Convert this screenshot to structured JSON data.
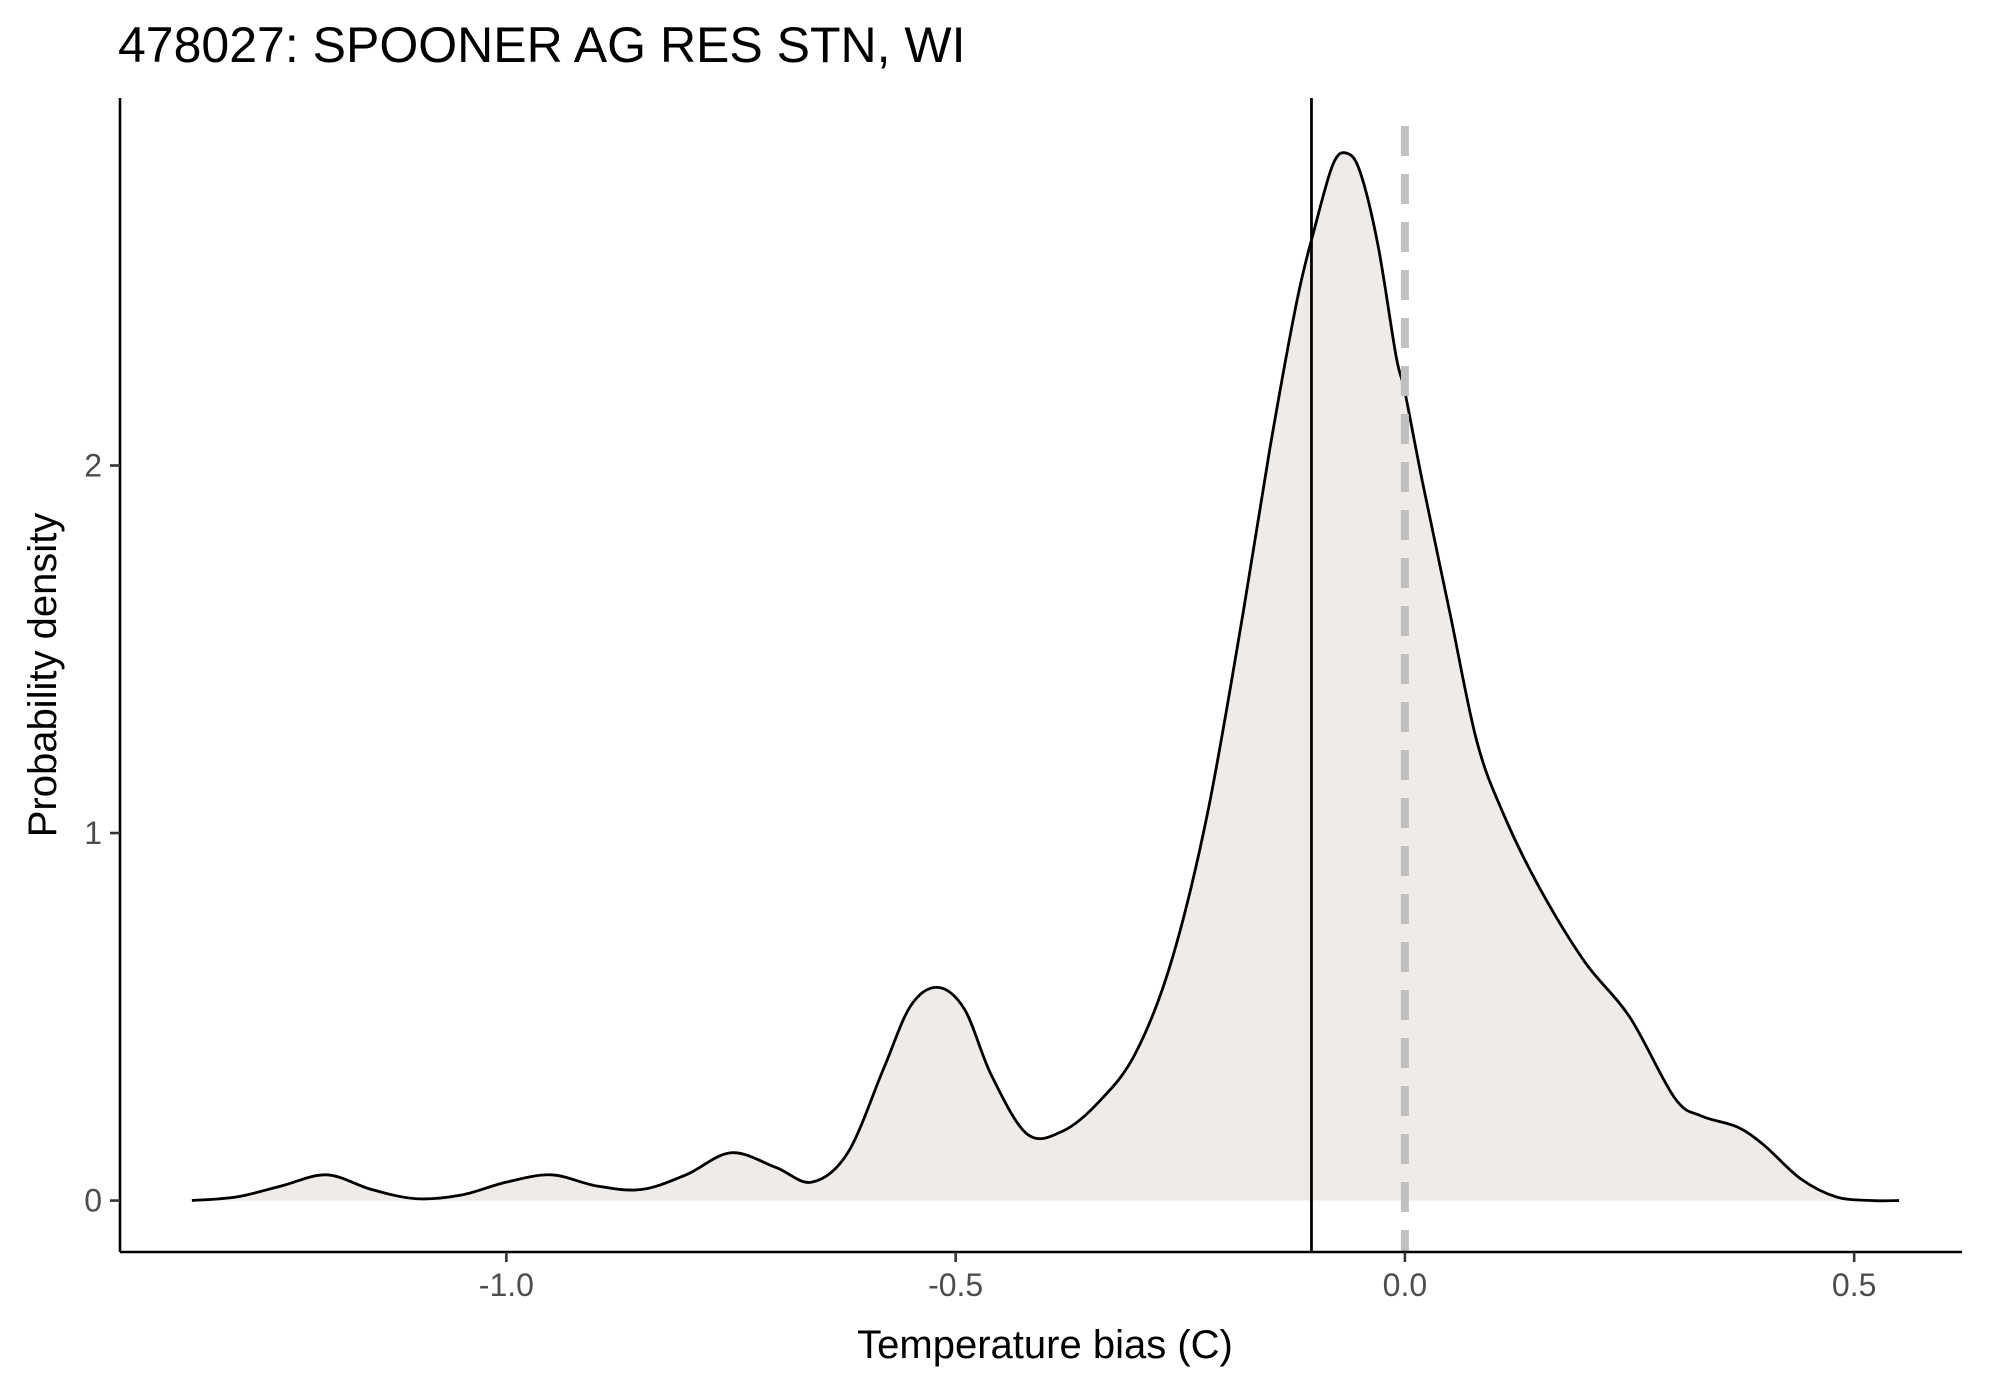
{
  "chart_data": {
    "type": "area",
    "title": "478027: SPOONER AG RES STN, WI",
    "xlabel": "Temperature bias (C)",
    "ylabel": "Probability density",
    "xlim": [
      -1.43,
      0.62
    ],
    "ylim": [
      -0.14,
      3.0
    ],
    "x_ticks": [
      -1.0,
      -0.5,
      0.0,
      0.5
    ],
    "x_tick_labels": [
      "-1.0",
      "-0.5",
      "0.0",
      "0.5"
    ],
    "y_ticks": [
      0,
      1,
      2
    ],
    "y_tick_labels": [
      "0",
      "1",
      "2"
    ],
    "grid": false,
    "legend": "none",
    "fill_color": "#efebe8",
    "line_color": "#000000",
    "reference_lines": [
      {
        "x": -0.104,
        "style": "solid",
        "color": "#000000"
      },
      {
        "x": 0.0,
        "style": "dashed",
        "color": "#c0c0c0"
      }
    ],
    "density": {
      "x": [
        -1.35,
        -1.3,
        -1.25,
        -1.2,
        -1.15,
        -1.1,
        -1.05,
        -1.0,
        -0.95,
        -0.9,
        -0.85,
        -0.8,
        -0.75,
        -0.7,
        -0.66,
        -0.62,
        -0.58,
        -0.55,
        -0.52,
        -0.49,
        -0.46,
        -0.42,
        -0.38,
        -0.34,
        -0.3,
        -0.26,
        -0.22,
        -0.18,
        -0.15,
        -0.12,
        -0.1,
        -0.08,
        -0.065,
        -0.05,
        -0.03,
        -0.01,
        0.0,
        0.02,
        0.05,
        0.08,
        0.11,
        0.15,
        0.2,
        0.25,
        0.3,
        0.33,
        0.37,
        0.4,
        0.44,
        0.48,
        0.52,
        0.55
      ],
      "y": [
        0.0,
        0.01,
        0.04,
        0.07,
        0.03,
        0.005,
        0.015,
        0.05,
        0.07,
        0.04,
        0.03,
        0.07,
        0.13,
        0.09,
        0.05,
        0.13,
        0.36,
        0.53,
        0.58,
        0.52,
        0.34,
        0.18,
        0.19,
        0.27,
        0.4,
        0.65,
        1.05,
        1.6,
        2.05,
        2.45,
        2.65,
        2.82,
        2.85,
        2.8,
        2.6,
        2.3,
        2.2,
        1.95,
        1.6,
        1.25,
        1.05,
        0.85,
        0.65,
        0.5,
        0.28,
        0.23,
        0.2,
        0.15,
        0.06,
        0.01,
        0.0,
        0.0
      ]
    }
  }
}
